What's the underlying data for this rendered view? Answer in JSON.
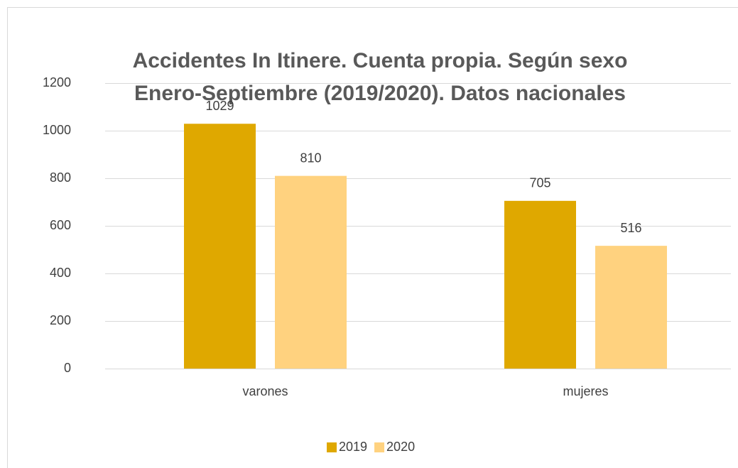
{
  "chart_data": {
    "type": "bar",
    "title": "Accidentes In Itinere. Cuenta propia. Según sexo",
    "subtitle": "Enero-Septiembre (2019/2020). Datos nacionales",
    "categories": [
      "varones",
      "mujeres"
    ],
    "series": [
      {
        "name": "2019",
        "color": "#dfa800",
        "values": [
          1029,
          705
        ]
      },
      {
        "name": "2020",
        "color": "#ffd27f",
        "values": [
          810,
          516
        ]
      }
    ],
    "ylim": [
      0,
      1200
    ],
    "yticks": [
      0,
      200,
      400,
      600,
      800,
      1000,
      1200
    ],
    "grid": true,
    "legend": "bottom"
  }
}
